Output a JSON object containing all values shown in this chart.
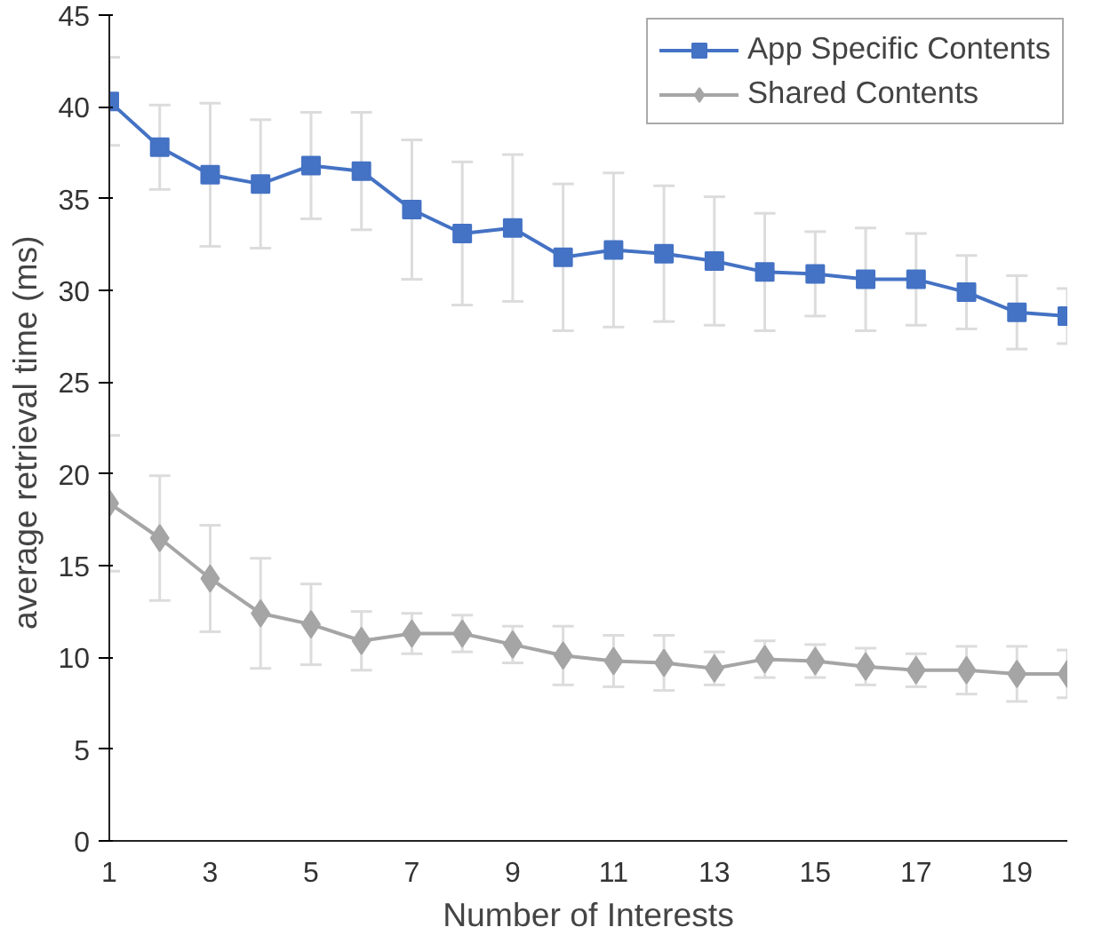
{
  "chart_data": {
    "type": "line",
    "xlabel": "Number of Interests",
    "ylabel": "average  retrieval time (ms)",
    "x": [
      1,
      2,
      3,
      4,
      5,
      6,
      7,
      8,
      9,
      10,
      11,
      12,
      13,
      14,
      15,
      16,
      17,
      18,
      19,
      20
    ],
    "series": [
      {
        "name": "App Specific Contents",
        "color": "#4472c4",
        "marker": "square",
        "values": [
          40.3,
          37.8,
          36.3,
          35.8,
          36.8,
          36.5,
          34.4,
          33.1,
          33.4,
          31.8,
          32.2,
          32.0,
          31.6,
          31.0,
          30.9,
          30.6,
          30.6,
          29.9,
          28.8,
          28.6
        ],
        "errors": [
          2.4,
          2.3,
          3.9,
          3.5,
          2.9,
          3.2,
          3.8,
          3.9,
          4.0,
          4.0,
          4.2,
          3.7,
          3.5,
          3.2,
          2.3,
          2.8,
          2.5,
          2.0,
          2.0,
          1.5
        ]
      },
      {
        "name": "Shared Contents",
        "color": "#a5a5a5",
        "marker": "diamond",
        "values": [
          18.4,
          16.5,
          14.3,
          12.4,
          11.8,
          10.9,
          11.3,
          11.3,
          10.7,
          10.1,
          9.8,
          9.7,
          9.4,
          9.9,
          9.8,
          9.5,
          9.3,
          9.3,
          9.1,
          9.1
        ],
        "errors": [
          3.7,
          3.4,
          2.9,
          3.0,
          2.2,
          1.6,
          1.1,
          1.0,
          1.0,
          1.6,
          1.4,
          1.5,
          0.9,
          1.0,
          0.9,
          1.0,
          0.9,
          1.3,
          1.5,
          1.3
        ]
      }
    ],
    "xlim": [
      1,
      20
    ],
    "xticks": [
      1,
      3,
      5,
      7,
      9,
      11,
      13,
      15,
      17,
      19
    ],
    "ylim": [
      0,
      45
    ],
    "yticks": [
      0,
      5,
      10,
      15,
      20,
      25,
      30,
      35,
      40,
      45
    ],
    "grid": false,
    "legend": "top right",
    "line_style": "solid"
  }
}
